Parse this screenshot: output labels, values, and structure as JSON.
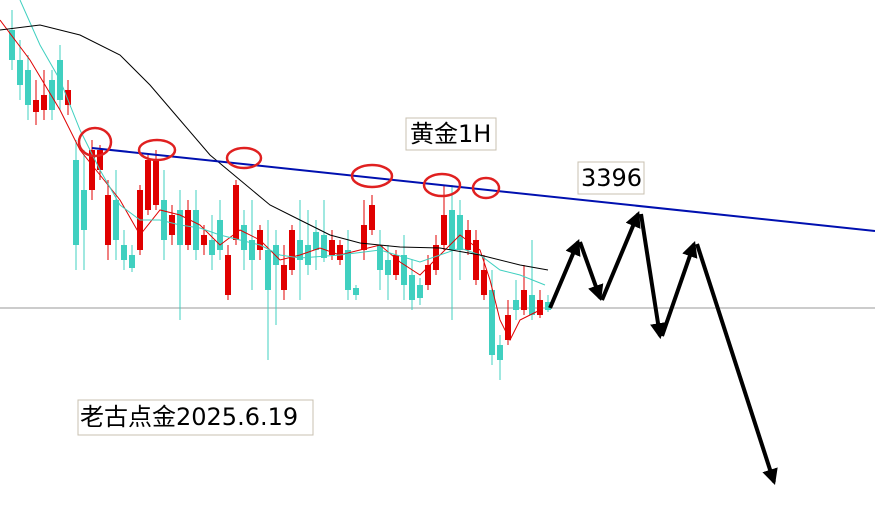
{
  "annotations": {
    "title": "黄金1H",
    "price_label": "3396",
    "watermark": "老古点金2025.6.19"
  }
}
